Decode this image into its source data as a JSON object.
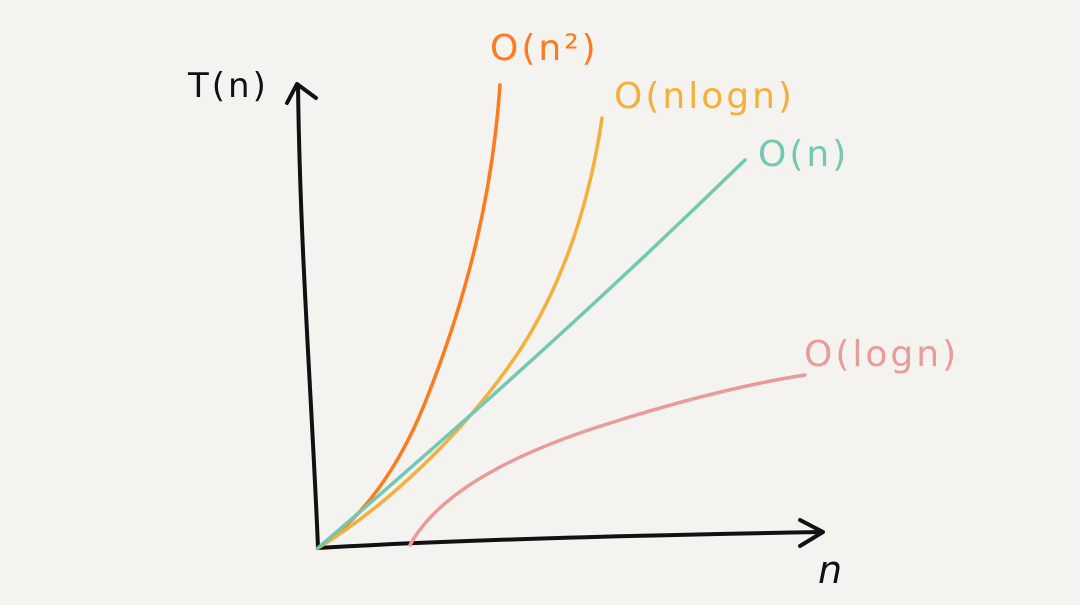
{
  "chart_data": {
    "type": "line",
    "title": "",
    "xlabel": "n",
    "ylabel": "T(n)",
    "grid": false,
    "axis_ticks": false,
    "background": "#f4f3ef",
    "series": [
      {
        "name": "O(n²)",
        "color": "#ff7a1e"
      },
      {
        "name": "O(nlogn)",
        "color": "#f4b03a"
      },
      {
        "name": "O(n)",
        "color": "#72c9b2"
      },
      {
        "name": "O(logn)",
        "color": "#eb9a9a"
      }
    ]
  }
}
